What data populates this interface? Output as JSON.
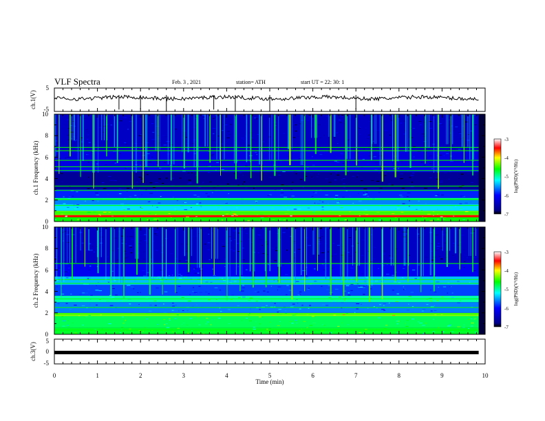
{
  "header": {
    "title": "VLF Spectra",
    "date": "Feb. 3 , 2021",
    "station": "station= ATH",
    "start_time": "start UT = 22: 30: 1"
  },
  "chart_data": [
    {
      "type": "line",
      "name": "ch1-waveform",
      "ylabel": "ch.1(V)",
      "ylim": [
        -5,
        5
      ],
      "y_ticks": [
        "5",
        "-5"
      ],
      "xlim": [
        0,
        10
      ],
      "trace_level_V": 0.8,
      "trace_span_min": [
        0,
        9.85
      ]
    },
    {
      "type": "heatmap",
      "name": "ch1-spectrogram",
      "ylabel": "ch.1 Frequency (kHz)",
      "ylim": [
        0,
        10
      ],
      "y_ticks": [
        "0",
        "2",
        "4",
        "6",
        "8",
        "10"
      ],
      "xlim": [
        0,
        10
      ],
      "data_span_min": [
        0,
        9.85
      ],
      "bands": [
        {
          "from_khz": 0.0,
          "to_khz": 0.4,
          "level": -4.6
        },
        {
          "from_khz": 0.4,
          "to_khz": 0.6,
          "level": -3.5
        },
        {
          "from_khz": 0.6,
          "to_khz": 1.0,
          "level": -4.4
        },
        {
          "from_khz": 1.0,
          "to_khz": 1.6,
          "level": -5.3
        },
        {
          "from_khz": 1.6,
          "to_khz": 2.0,
          "level": -5.6
        },
        {
          "from_khz": 2.0,
          "to_khz": 2.2,
          "level": -4.9
        },
        {
          "from_khz": 2.2,
          "to_khz": 3.0,
          "level": -5.9
        },
        {
          "from_khz": 3.0,
          "to_khz": 4.6,
          "level": -6.7
        },
        {
          "from_khz": 4.6,
          "to_khz": 5.0,
          "level": -6.1
        },
        {
          "from_khz": 5.0,
          "to_khz": 6.6,
          "level": -6.2
        },
        {
          "from_khz": 6.6,
          "to_khz": 10.0,
          "level": -6.4
        }
      ],
      "tones_khz": [
        0.3,
        0.8,
        1.5,
        2.05,
        2.9,
        3.3,
        4.75,
        5.1,
        5.7,
        6.6,
        6.9
      ],
      "burst_times_min": [
        0.1,
        0.35,
        0.6,
        0.9,
        1.2,
        1.45,
        1.8,
        2.05,
        2.4,
        2.7,
        3.0,
        3.3,
        3.6,
        3.85,
        4.2,
        4.55,
        4.8,
        5.1,
        5.45,
        5.8,
        6.05,
        6.4,
        6.75,
        7.0,
        7.35,
        7.6,
        7.9,
        8.25,
        8.6,
        8.9,
        9.2,
        9.5,
        9.7
      ]
    },
    {
      "type": "heatmap",
      "name": "ch2-spectrogram",
      "ylabel": "ch.2 Frequency (kHz)",
      "ylim": [
        0,
        10
      ],
      "y_ticks": [
        "0",
        "2",
        "4",
        "6",
        "8",
        "10"
      ],
      "xlim": [
        0,
        10
      ],
      "data_span_min": [
        0,
        9.85
      ],
      "bands": [
        {
          "from_khz": 0.0,
          "to_khz": 0.6,
          "level": -4.7
        },
        {
          "from_khz": 0.6,
          "to_khz": 1.7,
          "level": -4.8
        },
        {
          "from_khz": 1.7,
          "to_khz": 2.0,
          "level": -4.3
        },
        {
          "from_khz": 2.0,
          "to_khz": 3.0,
          "level": -5.6
        },
        {
          "from_khz": 3.0,
          "to_khz": 3.6,
          "level": -5.0
        },
        {
          "from_khz": 3.6,
          "to_khz": 4.6,
          "level": -5.8
        },
        {
          "from_khz": 4.6,
          "to_khz": 5.4,
          "level": -5.4
        },
        {
          "from_khz": 5.4,
          "to_khz": 6.6,
          "level": -6.1
        },
        {
          "from_khz": 6.6,
          "to_khz": 10.0,
          "level": -6.4
        }
      ],
      "tones_khz": [
        0.4,
        1.9,
        2.5,
        3.3,
        4.75,
        5.1,
        6.6
      ],
      "burst_times_min": [
        0.15,
        0.4,
        0.7,
        1.0,
        1.3,
        1.6,
        1.9,
        2.2,
        2.5,
        2.8,
        3.1,
        3.4,
        3.7,
        4.0,
        4.3,
        4.6,
        4.9,
        5.2,
        5.5,
        5.8,
        6.1,
        6.4,
        6.7,
        7.0,
        7.3,
        7.6,
        7.9,
        8.2,
        8.5,
        8.8,
        9.1,
        9.4,
        9.7
      ]
    },
    {
      "type": "line",
      "name": "ch3-waveform",
      "ylabel": "ch.3(V)",
      "ylim": [
        -5,
        5
      ],
      "y_ticks": [
        "5",
        "0",
        "-5"
      ],
      "xlim": [
        0,
        10
      ],
      "xlabel": "Time (min)",
      "x_ticks": [
        "0",
        "1",
        "2",
        "3",
        "4",
        "5",
        "6",
        "7",
        "8",
        "9",
        "10"
      ],
      "trace_level_V": -0.4,
      "trace_span_min": [
        0,
        9.85
      ]
    }
  ],
  "colorbars": [
    {
      "label": "log(PSD)(V²/Hz)",
      "range": [
        -7,
        -3
      ],
      "ticks": [
        "-3",
        "-4",
        "-5",
        "-6",
        "-7"
      ]
    },
    {
      "label": "log(PSD)(V²/Hz)",
      "range": [
        -7,
        -3
      ],
      "ticks": [
        "-3",
        "-4",
        "-5",
        "-6",
        "-7"
      ]
    }
  ],
  "colors": {
    "scale": [
      "#000000",
      "#00008b",
      "#0000ff",
      "#00ffff",
      "#00ff00",
      "#ffff00",
      "#ff0000",
      "#ffffff"
    ]
  }
}
